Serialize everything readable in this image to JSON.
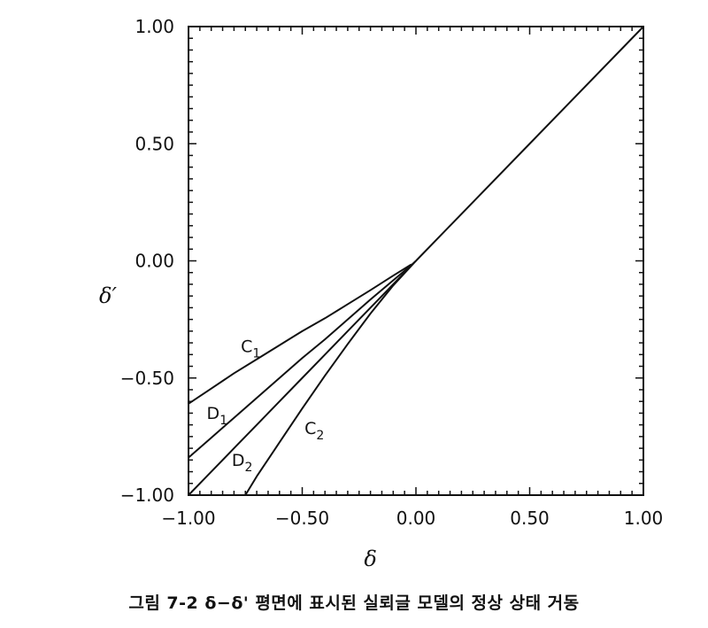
{
  "caption": "그림 7-2  δ−δ' 평면에 표시된 실뢰글 모델의 정상 상태 거동",
  "chart_data": {
    "type": "line",
    "xlabel": "δ",
    "ylabel": "δ′",
    "xlim": [
      -1.0,
      1.0
    ],
    "ylim": [
      -1.0,
      1.0
    ],
    "x_ticks": [
      "−1.00",
      "−0.50",
      "0.00",
      "0.50",
      "1.00"
    ],
    "y_ticks": [
      "−1.00",
      "−0.50",
      "0.00",
      "0.50",
      "1.00"
    ],
    "x_tick_values": [
      -1.0,
      -0.5,
      0.0,
      0.5,
      1.0
    ],
    "y_tick_values": [
      -1.0,
      -0.5,
      0.0,
      0.5,
      1.0
    ],
    "grid": false,
    "series": [
      {
        "name": "C1",
        "x": [
          -1.0,
          -0.9,
          -0.8,
          -0.7,
          -0.6,
          -0.5,
          -0.4,
          -0.3,
          -0.2,
          -0.1,
          -0.02
        ],
        "y": [
          -0.61,
          -0.545,
          -0.48,
          -0.42,
          -0.36,
          -0.3,
          -0.245,
          -0.185,
          -0.125,
          -0.063,
          -0.015
        ]
      },
      {
        "name": "D1",
        "x": [
          -1.0,
          -0.9,
          -0.8,
          -0.7,
          -0.6,
          -0.5,
          -0.4,
          -0.3,
          -0.2,
          -0.1,
          -0.02
        ],
        "y": [
          -0.84,
          -0.755,
          -0.67,
          -0.585,
          -0.5,
          -0.415,
          -0.335,
          -0.25,
          -0.165,
          -0.083,
          -0.018
        ]
      },
      {
        "name": "D2",
        "x": [
          -1.0,
          -0.9,
          -0.8,
          -0.7,
          -0.6,
          -0.5,
          -0.4,
          -0.3,
          -0.2,
          -0.1,
          -0.02
        ],
        "y": [
          -1.0,
          -0.9,
          -0.8,
          -0.7,
          -0.6,
          -0.5,
          -0.4,
          -0.3,
          -0.2,
          -0.1,
          -0.02
        ]
      },
      {
        "name": "C2",
        "x": [
          -0.75,
          -0.7,
          -0.6,
          -0.5,
          -0.4,
          -0.3,
          -0.2,
          -0.1,
          0.0
        ],
        "y": [
          -1.0,
          -0.92,
          -0.775,
          -0.63,
          -0.49,
          -0.355,
          -0.225,
          -0.105,
          0.0
        ]
      },
      {
        "name": "",
        "x": [
          -0.02,
          0.0,
          0.5,
          1.0
        ],
        "y": [
          -0.018,
          0.0,
          0.5,
          1.0
        ]
      }
    ],
    "labels": [
      {
        "text": "C",
        "sub": "1",
        "x": -0.77,
        "y": -0.39
      },
      {
        "text": "D",
        "sub": "1",
        "x": -0.92,
        "y": -0.675
      },
      {
        "text": "D",
        "sub": "2",
        "x": -0.81,
        "y": -0.875
      },
      {
        "text": "C",
        "sub": "2",
        "x": -0.49,
        "y": -0.74
      }
    ]
  }
}
